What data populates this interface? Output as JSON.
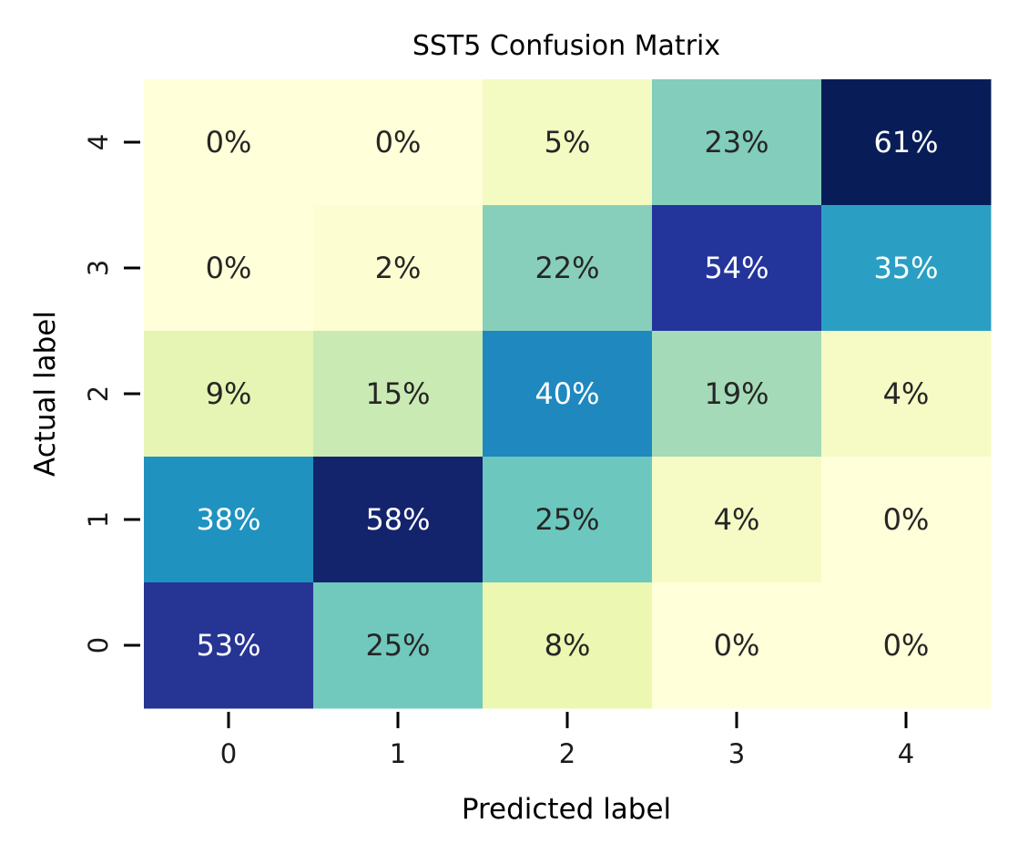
{
  "chart_data": {
    "type": "heatmap",
    "title": "SST5 Confusion Matrix",
    "xlabel": "Predicted label",
    "ylabel": "Actual label",
    "x_categories": [
      "0",
      "1",
      "2",
      "3",
      "4"
    ],
    "y_categories": [
      "4",
      "3",
      "2",
      "1",
      "0"
    ],
    "values": [
      [
        0,
        0,
        5,
        23,
        61
      ],
      [
        0,
        2,
        22,
        54,
        35
      ],
      [
        9,
        15,
        40,
        19,
        4
      ],
      [
        38,
        58,
        25,
        4,
        0
      ],
      [
        53,
        25,
        8,
        0,
        0
      ]
    ],
    "value_suffix": "%",
    "colors": [
      [
        "#ffffd9",
        "#ffffd9",
        "#f4fbc2",
        "#82cdbb",
        "#081d58"
      ],
      [
        "#ffffd9",
        "#fcfed2",
        "#88cfbb",
        "#23349b",
        "#2a9fc3"
      ],
      [
        "#e6f5b3",
        "#c9eab3",
        "#1f88bf",
        "#a4dab8",
        "#f6fbc5"
      ],
      [
        "#1f92c0",
        "#13236c",
        "#6cc8be",
        "#f6fbc5",
        "#ffffd9"
      ],
      [
        "#263494",
        "#71c8bd",
        "#ecf7b1",
        "#ffffd9",
        "#ffffd9"
      ]
    ],
    "text_colors": [
      [
        "#262626",
        "#262626",
        "#262626",
        "#262626",
        "#ffffff"
      ],
      [
        "#262626",
        "#262626",
        "#262626",
        "#ffffff",
        "#ffffff"
      ],
      [
        "#262626",
        "#262626",
        "#ffffff",
        "#262626",
        "#262626"
      ],
      [
        "#ffffff",
        "#ffffff",
        "#262626",
        "#262626",
        "#262626"
      ],
      [
        "#ffffff",
        "#262626",
        "#262626",
        "#262626",
        "#262626"
      ]
    ],
    "colormap": "YlGnBu",
    "colorbar": false,
    "grid": false
  }
}
